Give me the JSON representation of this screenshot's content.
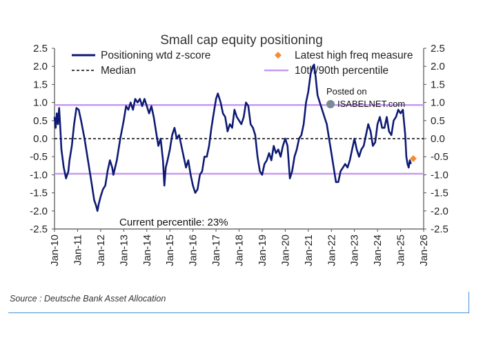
{
  "chart_data": {
    "type": "line",
    "title": "Small cap equity positioning",
    "ylim": [
      -2.5,
      2.5
    ],
    "y_ticks": [
      "2.5",
      "2.0",
      "1.5",
      "1.0",
      "0.5",
      "0.0",
      "-0.5",
      "-1.0",
      "-1.5",
      "-2.0",
      "-2.5"
    ],
    "x_ticks": [
      "Jan-10",
      "Jan-11",
      "Jan-12",
      "Jan-13",
      "Jan-14",
      "Jan-15",
      "Jan-16",
      "Jan-17",
      "Jan-18",
      "Jan-19",
      "Jan-20",
      "Jan-21",
      "Jan-22",
      "Jan-23",
      "Jan-24",
      "Jan-25",
      "Jan-26"
    ],
    "x_range_years": [
      2010,
      2026
    ],
    "legend": {
      "series": "Positioning wtd z-score",
      "latest": "Latest high freq measure",
      "median": "Median",
      "percentile": "10th/90th percentile"
    },
    "annotation": "Current percentile: 23%",
    "watermark_posted": "Posted on",
    "watermark_site": "ISABELNET.com",
    "median_value": 0.0,
    "percentile_10": -0.97,
    "percentile_90": 0.93,
    "latest_high_freq": {
      "x": 2025.55,
      "y": -0.55
    },
    "series": [
      {
        "name": "Positioning wtd z-score",
        "points": [
          [
            2010.0,
            0.6
          ],
          [
            2010.05,
            0.3
          ],
          [
            2010.1,
            0.7
          ],
          [
            2010.15,
            0.4
          ],
          [
            2010.2,
            0.85
          ],
          [
            2010.25,
            0.3
          ],
          [
            2010.3,
            -0.3
          ],
          [
            2010.4,
            -0.8
          ],
          [
            2010.5,
            -1.1
          ],
          [
            2010.6,
            -0.9
          ],
          [
            2010.65,
            -0.6
          ],
          [
            2010.75,
            -0.2
          ],
          [
            2010.85,
            0.4
          ],
          [
            2010.95,
            0.85
          ],
          [
            2011.05,
            0.8
          ],
          [
            2011.15,
            0.5
          ],
          [
            2011.3,
            0.0
          ],
          [
            2011.45,
            -0.6
          ],
          [
            2011.6,
            -1.2
          ],
          [
            2011.72,
            -1.7
          ],
          [
            2011.8,
            -1.85
          ],
          [
            2011.86,
            -2.0
          ],
          [
            2011.92,
            -1.8
          ],
          [
            2012.0,
            -1.6
          ],
          [
            2012.1,
            -1.4
          ],
          [
            2012.2,
            -1.3
          ],
          [
            2012.3,
            -0.9
          ],
          [
            2012.4,
            -0.6
          ],
          [
            2012.5,
            -0.8
          ],
          [
            2012.55,
            -1.0
          ],
          [
            2012.7,
            -0.6
          ],
          [
            2012.85,
            0.0
          ],
          [
            2013.0,
            0.5
          ],
          [
            2013.1,
            0.9
          ],
          [
            2013.2,
            0.8
          ],
          [
            2013.3,
            1.0
          ],
          [
            2013.4,
            0.8
          ],
          [
            2013.5,
            1.1
          ],
          [
            2013.6,
            1.0
          ],
          [
            2013.7,
            1.1
          ],
          [
            2013.8,
            0.9
          ],
          [
            2013.9,
            1.1
          ],
          [
            2014.0,
            0.9
          ],
          [
            2014.1,
            0.7
          ],
          [
            2014.2,
            0.9
          ],
          [
            2014.3,
            0.6
          ],
          [
            2014.4,
            0.2
          ],
          [
            2014.5,
            -0.2
          ],
          [
            2014.6,
            0.0
          ],
          [
            2014.7,
            -0.6
          ],
          [
            2014.76,
            -1.3
          ],
          [
            2014.82,
            -0.8
          ],
          [
            2014.9,
            -0.6
          ],
          [
            2015.0,
            -0.3
          ],
          [
            2015.1,
            0.1
          ],
          [
            2015.2,
            0.3
          ],
          [
            2015.3,
            0.0
          ],
          [
            2015.4,
            0.1
          ],
          [
            2015.5,
            -0.2
          ],
          [
            2015.6,
            -0.5
          ],
          [
            2015.7,
            -0.8
          ],
          [
            2015.8,
            -0.6
          ],
          [
            2015.9,
            -1.0
          ],
          [
            2016.0,
            -1.3
          ],
          [
            2016.1,
            -1.5
          ],
          [
            2016.2,
            -1.4
          ],
          [
            2016.3,
            -1.0
          ],
          [
            2016.4,
            -0.9
          ],
          [
            2016.5,
            -0.5
          ],
          [
            2016.6,
            -0.5
          ],
          [
            2016.7,
            -0.2
          ],
          [
            2016.8,
            0.3
          ],
          [
            2016.9,
            0.7
          ],
          [
            2017.0,
            1.1
          ],
          [
            2017.08,
            1.25
          ],
          [
            2017.2,
            1.0
          ],
          [
            2017.3,
            0.7
          ],
          [
            2017.4,
            0.6
          ],
          [
            2017.5,
            0.2
          ],
          [
            2017.6,
            0.4
          ],
          [
            2017.7,
            0.3
          ],
          [
            2017.8,
            0.8
          ],
          [
            2017.9,
            0.6
          ],
          [
            2018.0,
            0.5
          ],
          [
            2018.1,
            0.4
          ],
          [
            2018.2,
            0.6
          ],
          [
            2018.3,
            1.0
          ],
          [
            2018.4,
            0.9
          ],
          [
            2018.5,
            0.4
          ],
          [
            2018.6,
            0.3
          ],
          [
            2018.7,
            0.1
          ],
          [
            2018.8,
            -0.5
          ],
          [
            2018.9,
            -0.9
          ],
          [
            2019.0,
            -1.0
          ],
          [
            2019.1,
            -0.7
          ],
          [
            2019.2,
            -0.6
          ],
          [
            2019.3,
            -0.4
          ],
          [
            2019.4,
            -0.6
          ],
          [
            2019.5,
            -0.2
          ],
          [
            2019.6,
            -0.4
          ],
          [
            2019.7,
            -0.3
          ],
          [
            2019.8,
            -0.5
          ],
          [
            2019.9,
            -0.2
          ],
          [
            2020.0,
            0.0
          ],
          [
            2020.1,
            -0.2
          ],
          [
            2020.2,
            -1.1
          ],
          [
            2020.3,
            -0.9
          ],
          [
            2020.4,
            -0.5
          ],
          [
            2020.5,
            -0.3
          ],
          [
            2020.6,
            0.0
          ],
          [
            2020.7,
            0.1
          ],
          [
            2020.8,
            0.4
          ],
          [
            2020.9,
            1.0
          ],
          [
            2021.0,
            1.3
          ],
          [
            2021.1,
            1.8
          ],
          [
            2021.2,
            2.0
          ],
          [
            2021.25,
            2.05
          ],
          [
            2021.32,
            1.7
          ],
          [
            2021.4,
            1.2
          ],
          [
            2021.5,
            1.0
          ],
          [
            2021.6,
            0.8
          ],
          [
            2021.7,
            0.6
          ],
          [
            2021.8,
            0.4
          ],
          [
            2021.9,
            0.0
          ],
          [
            2022.0,
            -0.4
          ],
          [
            2022.1,
            -0.8
          ],
          [
            2022.2,
            -1.2
          ],
          [
            2022.3,
            -1.2
          ],
          [
            2022.4,
            -0.9
          ],
          [
            2022.5,
            -0.8
          ],
          [
            2022.6,
            -0.7
          ],
          [
            2022.7,
            -0.8
          ],
          [
            2022.8,
            -0.6
          ],
          [
            2022.9,
            -0.3
          ],
          [
            2023.0,
            0.0
          ],
          [
            2023.1,
            -0.3
          ],
          [
            2023.2,
            -0.5
          ],
          [
            2023.3,
            -0.3
          ],
          [
            2023.4,
            -0.2
          ],
          [
            2023.5,
            0.1
          ],
          [
            2023.6,
            0.4
          ],
          [
            2023.7,
            0.2
          ],
          [
            2023.8,
            -0.2
          ],
          [
            2023.9,
            -0.1
          ],
          [
            2024.0,
            0.4
          ],
          [
            2024.1,
            0.6
          ],
          [
            2024.2,
            0.3
          ],
          [
            2024.3,
            0.3
          ],
          [
            2024.4,
            0.6
          ],
          [
            2024.5,
            0.2
          ],
          [
            2024.6,
            0.1
          ],
          [
            2024.7,
            0.5
          ],
          [
            2024.8,
            0.6
          ],
          [
            2024.9,
            0.8
          ],
          [
            2025.0,
            0.7
          ],
          [
            2025.1,
            0.8
          ],
          [
            2025.2,
            0.1
          ],
          [
            2025.25,
            -0.5
          ],
          [
            2025.3,
            -0.7
          ],
          [
            2025.35,
            -0.8
          ],
          [
            2025.4,
            -0.6
          ],
          [
            2025.45,
            -0.7
          ]
        ]
      }
    ]
  },
  "source_text": "Source : Deutsche Bank Asset Allocation",
  "colors": {
    "series": "#0e1a73",
    "percentile": "#c69af0",
    "median": "#000000",
    "latest": "#f28c38",
    "axis": "#4f4f4f",
    "footer_line": "#4a90d9"
  }
}
